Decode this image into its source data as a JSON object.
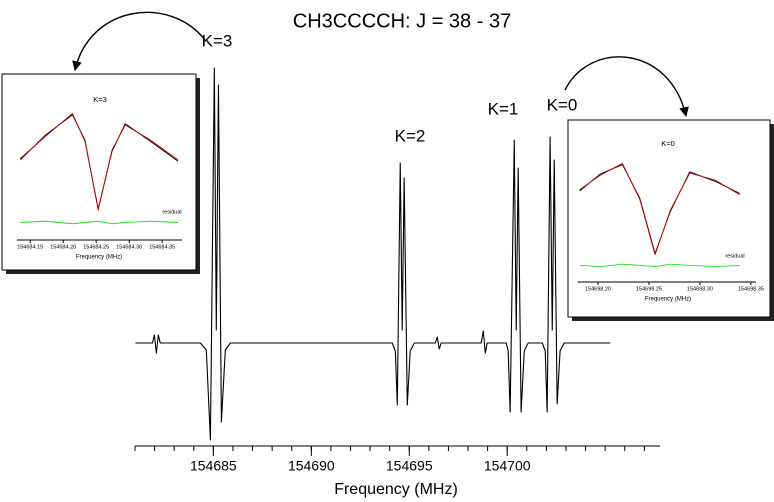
{
  "chart_data": [
    {
      "type": "line",
      "title": "CH3CCCCH: J = 38 - 37",
      "xlabel": "Frequency (MHz)",
      "annotations": [
        "K=3",
        "K=2",
        "K=1",
        "K=0"
      ],
      "xlim": [
        154681,
        154707.8
      ],
      "ylim": [
        -100,
        280
      ],
      "xticks": [
        154685,
        154690,
        154695,
        154700
      ],
      "xminorticks": [
        154681,
        154682,
        154683,
        154684,
        154685,
        154686,
        154687,
        154688,
        154689,
        154690,
        154691,
        154692,
        154693,
        154694,
        154695,
        154696,
        154697,
        154698,
        154699,
        154700,
        154701,
        154702,
        154703,
        154704,
        154705,
        154706,
        154707
      ],
      "x": [
        154681.02,
        154681.89,
        154681.99,
        154682.09,
        154682.19,
        154682.29,
        154684.34,
        154684.64,
        154684.85,
        154685.05,
        154685.15,
        154685.26,
        154685.41,
        154685.61,
        154685.87,
        154694.13,
        154694.29,
        154694.39,
        154694.54,
        154694.64,
        154694.74,
        154694.9,
        154695.05,
        154695.26,
        154696.33,
        154696.43,
        154696.53,
        154696.63,
        154698.67,
        154698.78,
        154698.88,
        154698.98,
        154699.95,
        154700.05,
        154700.15,
        154700.36,
        154700.46,
        154700.56,
        154700.71,
        154700.87,
        154701.07,
        154701.79,
        154701.94,
        154702.04,
        154702.19,
        154702.3,
        154702.4,
        154702.55,
        154702.7,
        154702.91,
        154705.26
      ],
      "series": [
        {
          "color": "#000000",
          "values": [
            0,
            0,
            8,
            -10,
            8,
            0,
            0,
            -7,
            -97,
            275,
            13,
            258,
            -79,
            -7,
            0,
            0,
            -8,
            -62,
            180,
            13,
            165,
            -62,
            -8,
            0,
            0,
            6,
            -6,
            0,
            0,
            12,
            -10,
            0,
            0,
            -8,
            -69,
            203,
            13,
            175,
            -69,
            -8,
            0,
            0,
            -8,
            -69,
            206,
            13,
            183,
            -61,
            -8,
            0,
            0
          ]
        }
      ]
    },
    {
      "type": "line",
      "title": "K=3",
      "xlabel": "Frequency (MHz)",
      "annotations": [
        "residual"
      ],
      "xlim": [
        154684.13,
        154684.38
      ],
      "ylim": [
        0,
        100
      ],
      "xticks": [
        154684.15,
        {
          "value": 154684.2,
          "label": "154684.20"
        },
        154684.25,
        {
          "value": 154684.3,
          "label": "154684.30"
        },
        154684.35
      ],
      "x": [
        154684.135,
        154684.173,
        154684.214,
        154684.233,
        154684.253,
        154684.274,
        154684.294,
        154684.332,
        154684.374
      ],
      "series": [
        {
          "color": "#000000",
          "values": [
            57,
            75,
            93,
            71,
            17,
            63,
            85,
            71,
            55
          ]
        },
        {
          "color": "#c00000",
          "values": [
            56,
            76,
            92,
            72,
            16,
            64,
            84,
            72,
            56
          ]
        },
        {
          "color": "#22dd22",
          "values": [
            6,
            7,
            5,
            6,
            7,
            5,
            6,
            7,
            6
          ]
        }
      ]
    },
    {
      "type": "line",
      "title": "K=0",
      "xlabel": "Frequency (MHz)",
      "annotations": [
        "residual"
      ],
      "xlim": [
        154698.18,
        154698.355
      ],
      "ylim": [
        0,
        100
      ],
      "xticks": [
        {
          "value": 154698.2,
          "label": "154698.20"
        },
        154698.25,
        {
          "value": 154698.3,
          "label": "154698.30"
        },
        154698.35
      ],
      "x": [
        154698.182,
        154698.202,
        154698.224,
        154698.241,
        154698.256,
        154698.271,
        154698.29,
        154698.315,
        154698.339
      ],
      "series": [
        {
          "color": "#000000",
          "values": [
            70,
            84,
            92,
            64,
            18,
            53,
            86,
            78,
            68
          ]
        },
        {
          "color": "#c00000",
          "values": [
            71,
            83,
            93,
            63,
            17,
            54,
            85,
            79,
            67
          ]
        },
        {
          "color": "#22dd22",
          "values": [
            8,
            7,
            9,
            8,
            7,
            9,
            8,
            7,
            8
          ]
        }
      ]
    }
  ]
}
